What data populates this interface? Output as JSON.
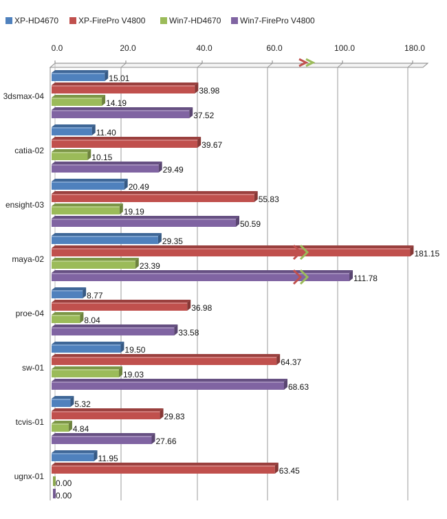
{
  "chart_data": {
    "type": "bar",
    "orientation": "horizontal",
    "title": "",
    "xlabel": "",
    "ylabel": "",
    "axis_position": "top",
    "grid": true,
    "legend_position": "top",
    "axis_break": true,
    "tick_labels": [
      "0.0",
      "20.0",
      "40.0",
      "60.0",
      "100.0",
      "180.0"
    ],
    "categories": [
      "3dsmax-04",
      "catia-02",
      "ensight-03",
      "maya-02",
      "proe-04",
      "sw-01",
      "tcvis-01",
      "ugnx-01"
    ],
    "series": [
      {
        "name": "XP-HD4670",
        "color": "#4f81bd",
        "values": [
          15.01,
          11.4,
          20.49,
          29.35,
          8.77,
          19.5,
          5.32,
          11.95
        ],
        "labels": [
          "15.01",
          "11.40",
          "20.49",
          "29.35",
          "8.77",
          "19.50",
          "5.32",
          "11.95"
        ]
      },
      {
        "name": "XP-FirePro V4800",
        "color": "#c0504d",
        "values": [
          38.98,
          39.67,
          55.83,
          181.15,
          36.98,
          64.37,
          29.83,
          63.45
        ],
        "labels": [
          "38.98",
          "39.67",
          "55.83",
          "181.15",
          "36.98",
          "64.37",
          "29.83",
          "63.45"
        ]
      },
      {
        "name": "Win7-HD4670",
        "color": "#9bbb59",
        "values": [
          14.19,
          10.15,
          19.19,
          23.39,
          8.04,
          19.03,
          4.84,
          0.0
        ],
        "labels": [
          "14.19",
          "10.15",
          "19.19",
          "23.39",
          "8.04",
          "19.03",
          "4.84",
          "0.00"
        ]
      },
      {
        "name": "Win7-FirePro V4800",
        "color": "#8064a2",
        "values": [
          37.52,
          29.49,
          50.59,
          111.78,
          33.58,
          68.63,
          27.66,
          0.0
        ],
        "labels": [
          "37.52",
          "29.49",
          "50.59",
          "111.78",
          "33.58",
          "68.63",
          "27.66",
          "0.00"
        ]
      }
    ]
  }
}
